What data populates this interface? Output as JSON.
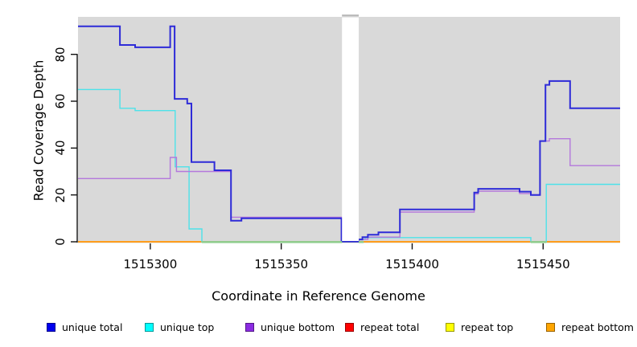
{
  "chart_data": {
    "type": "line",
    "subtype": "step-coverage",
    "title": "",
    "xlabel": "Coordinate in Reference Genome",
    "ylabel": "Read Coverage Depth",
    "x_ticks": [
      1515300,
      1515350,
      1515400,
      1515450
    ],
    "y_ticks": [
      0,
      20,
      40,
      60,
      80
    ],
    "xlim": [
      1515272.4,
      1515479.4
    ],
    "ylim": [
      0,
      96
    ],
    "panel_bg": "#d9d9d9",
    "grid": "off",
    "legend_position": "bottom",
    "gap_mask": {
      "x1": 1515373.2,
      "x2": 1515379.6,
      "fill": "#ffffff"
    },
    "step_style": "after",
    "series": [
      {
        "name": "repeat total",
        "legend_color": "#ff0000",
        "line_color": "#d42222",
        "width": 1.2,
        "points": [
          [
            1515272.4,
            0
          ],
          [
            1515479.4,
            0
          ]
        ]
      },
      {
        "name": "repeat top",
        "legend_color": "#ffff00",
        "line_color": "#f0e020",
        "width": 1.2,
        "points": [
          [
            1515272.4,
            0
          ],
          [
            1515479.4,
            0
          ]
        ]
      },
      {
        "name": "repeat bottom",
        "legend_color": "#ffa500",
        "line_color": "#ff9d1c",
        "width": 2,
        "points": [
          [
            1515272.4,
            0
          ],
          [
            1515479.4,
            0
          ]
        ]
      },
      {
        "name": "unique top",
        "legend_color": "#00ffff",
        "line_color": "#4de2e9",
        "width": 1.4,
        "points": [
          [
            1515272.4,
            65
          ],
          [
            1515288.4,
            57
          ],
          [
            1515294.2,
            56
          ],
          [
            1515309.5,
            32
          ],
          [
            1515314.8,
            5.5
          ],
          [
            1515319.7,
            0
          ],
          [
            1515379.6,
            1
          ],
          [
            1515382.0,
            1.8
          ],
          [
            1515445.3,
            0
          ],
          [
            1515451.2,
            24.5
          ],
          [
            1515479.4,
            24.5
          ]
        ]
      },
      {
        "name": "unique bottom",
        "legend_color": "#8b2be2",
        "line_color": "#b478dc",
        "width": 1.4,
        "points": [
          [
            1515272.4,
            27
          ],
          [
            1515307.6,
            36
          ],
          [
            1515310.0,
            30
          ],
          [
            1515330.8,
            10.5
          ],
          [
            1515373.0,
            0.1
          ],
          [
            1515379.6,
            1
          ],
          [
            1515383.1,
            2
          ],
          [
            1515395.3,
            12.7
          ],
          [
            1515423.7,
            20.4
          ],
          [
            1515425.2,
            21.6
          ],
          [
            1515441.0,
            20.6
          ],
          [
            1515445.3,
            20.1
          ],
          [
            1515448.8,
            43
          ],
          [
            1515452.4,
            44
          ],
          [
            1515460.3,
            32.5
          ],
          [
            1515479.4,
            32.5
          ]
        ]
      },
      {
        "name": "unique total",
        "legend_color": "#0000ee",
        "line_color": "#2e2bd8",
        "width": 2,
        "points": [
          [
            1515272.4,
            92
          ],
          [
            1515288.4,
            84
          ],
          [
            1515294.2,
            83
          ],
          [
            1515307.6,
            92
          ],
          [
            1515309.3,
            61
          ],
          [
            1515314.1,
            59
          ],
          [
            1515315.7,
            34
          ],
          [
            1515324.5,
            30.5
          ],
          [
            1515330.8,
            9
          ],
          [
            1515334.8,
            10
          ],
          [
            1515373.0,
            0.1
          ],
          [
            1515379.4,
            1
          ],
          [
            1515381.0,
            2
          ],
          [
            1515383.1,
            3
          ],
          [
            1515387.1,
            4
          ],
          [
            1515395.3,
            13.8
          ],
          [
            1515423.7,
            21
          ],
          [
            1515425.2,
            22.6
          ],
          [
            1515441.0,
            21.4
          ],
          [
            1515445.3,
            20
          ],
          [
            1515448.8,
            43
          ],
          [
            1515450.9,
            67
          ],
          [
            1515452.4,
            68.6
          ],
          [
            1515460.3,
            57
          ],
          [
            1515479.4,
            57
          ]
        ]
      }
    ],
    "overlap_blend": {
      "color": "#8fce8f",
      "width": 2.4,
      "note": "unique top at depth 0 over repeat top renders as light green",
      "segments": [
        [
          1515319.7,
          1515373.2
        ],
        [
          1515379.6,
          1515381.5
        ],
        [
          1515445.3,
          1515451.2
        ]
      ]
    },
    "legend": [
      {
        "label": "unique total",
        "color": "#0000ee"
      },
      {
        "label": "unique top",
        "color": "#00ffff"
      },
      {
        "label": "unique bottom",
        "color": "#8b2be2"
      },
      {
        "label": "repeat total",
        "color": "#ff0000"
      },
      {
        "label": "repeat top",
        "color": "#ffff00"
      },
      {
        "label": "repeat bottom",
        "color": "#ffa500"
      }
    ]
  }
}
